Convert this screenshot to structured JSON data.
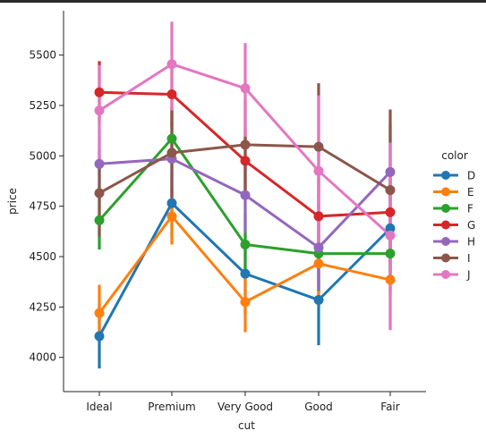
{
  "chart_data": {
    "type": "line",
    "style": "pointplot",
    "title": "",
    "xlabel": "cut",
    "ylabel": "price",
    "categories": [
      "Ideal",
      "Premium",
      "Very Good",
      "Good",
      "Fair"
    ],
    "ylim": [
      3830,
      5720
    ],
    "yticks": [
      4000,
      4250,
      4500,
      4750,
      5000,
      5250,
      5500
    ],
    "ytick_labels": [
      "4000",
      "4250",
      "4500",
      "4750",
      "5000",
      "5250",
      "5500"
    ],
    "grid": false,
    "legend": {
      "title": "color",
      "placement": "right"
    },
    "series": [
      {
        "name": "D",
        "color": "#1f77b4",
        "values": [
          4105,
          4765,
          4415,
          4285,
          4640
        ],
        "lower": [
          3945,
          4600,
          4215,
          4060,
          4395
        ],
        "upper": [
          4265,
          4930,
          4615,
          4515,
          4880
        ]
      },
      {
        "name": "E",
        "color": "#ff7f0e",
        "values": [
          4220,
          4700,
          4275,
          4465,
          4385
        ],
        "lower": [
          4085,
          4560,
          4125,
          4285,
          4150
        ],
        "upper": [
          4360,
          4845,
          4430,
          4645,
          4620
        ]
      },
      {
        "name": "F",
        "color": "#2ca02c",
        "values": [
          4680,
          5085,
          4560,
          4515,
          4515
        ],
        "lower": [
          4535,
          4935,
          4410,
          4330,
          4320
        ],
        "upper": [
          4830,
          5240,
          4715,
          4700,
          4715
        ]
      },
      {
        "name": "G",
        "color": "#d62728",
        "values": [
          5315,
          5305,
          4975,
          4700,
          4720
        ],
        "lower": [
          5160,
          5145,
          4815,
          4510,
          4505
        ],
        "upper": [
          5470,
          5460,
          5135,
          4890,
          4935
        ]
      },
      {
        "name": "H",
        "color": "#9467bd",
        "values": [
          4960,
          4985,
          4805,
          4545,
          4920
        ],
        "lower": [
          4795,
          4805,
          4620,
          4335,
          4680
        ],
        "upper": [
          5130,
          5170,
          4990,
          4760,
          5160
        ]
      },
      {
        "name": "I",
        "color": "#8c564b",
        "values": [
          4815,
          5015,
          5055,
          5045,
          4830
        ],
        "lower": [
          4600,
          4790,
          4830,
          4735,
          4420
        ],
        "upper": [
          5030,
          5240,
          5280,
          5360,
          5230
        ]
      },
      {
        "name": "J",
        "color": "#e377c2",
        "values": [
          5225,
          5455,
          5335,
          4925,
          4605
        ],
        "lower": [
          4980,
          5225,
          5095,
          4555,
          4135
        ],
        "upper": [
          5450,
          5665,
          5560,
          5300,
          5065
        ]
      }
    ]
  }
}
